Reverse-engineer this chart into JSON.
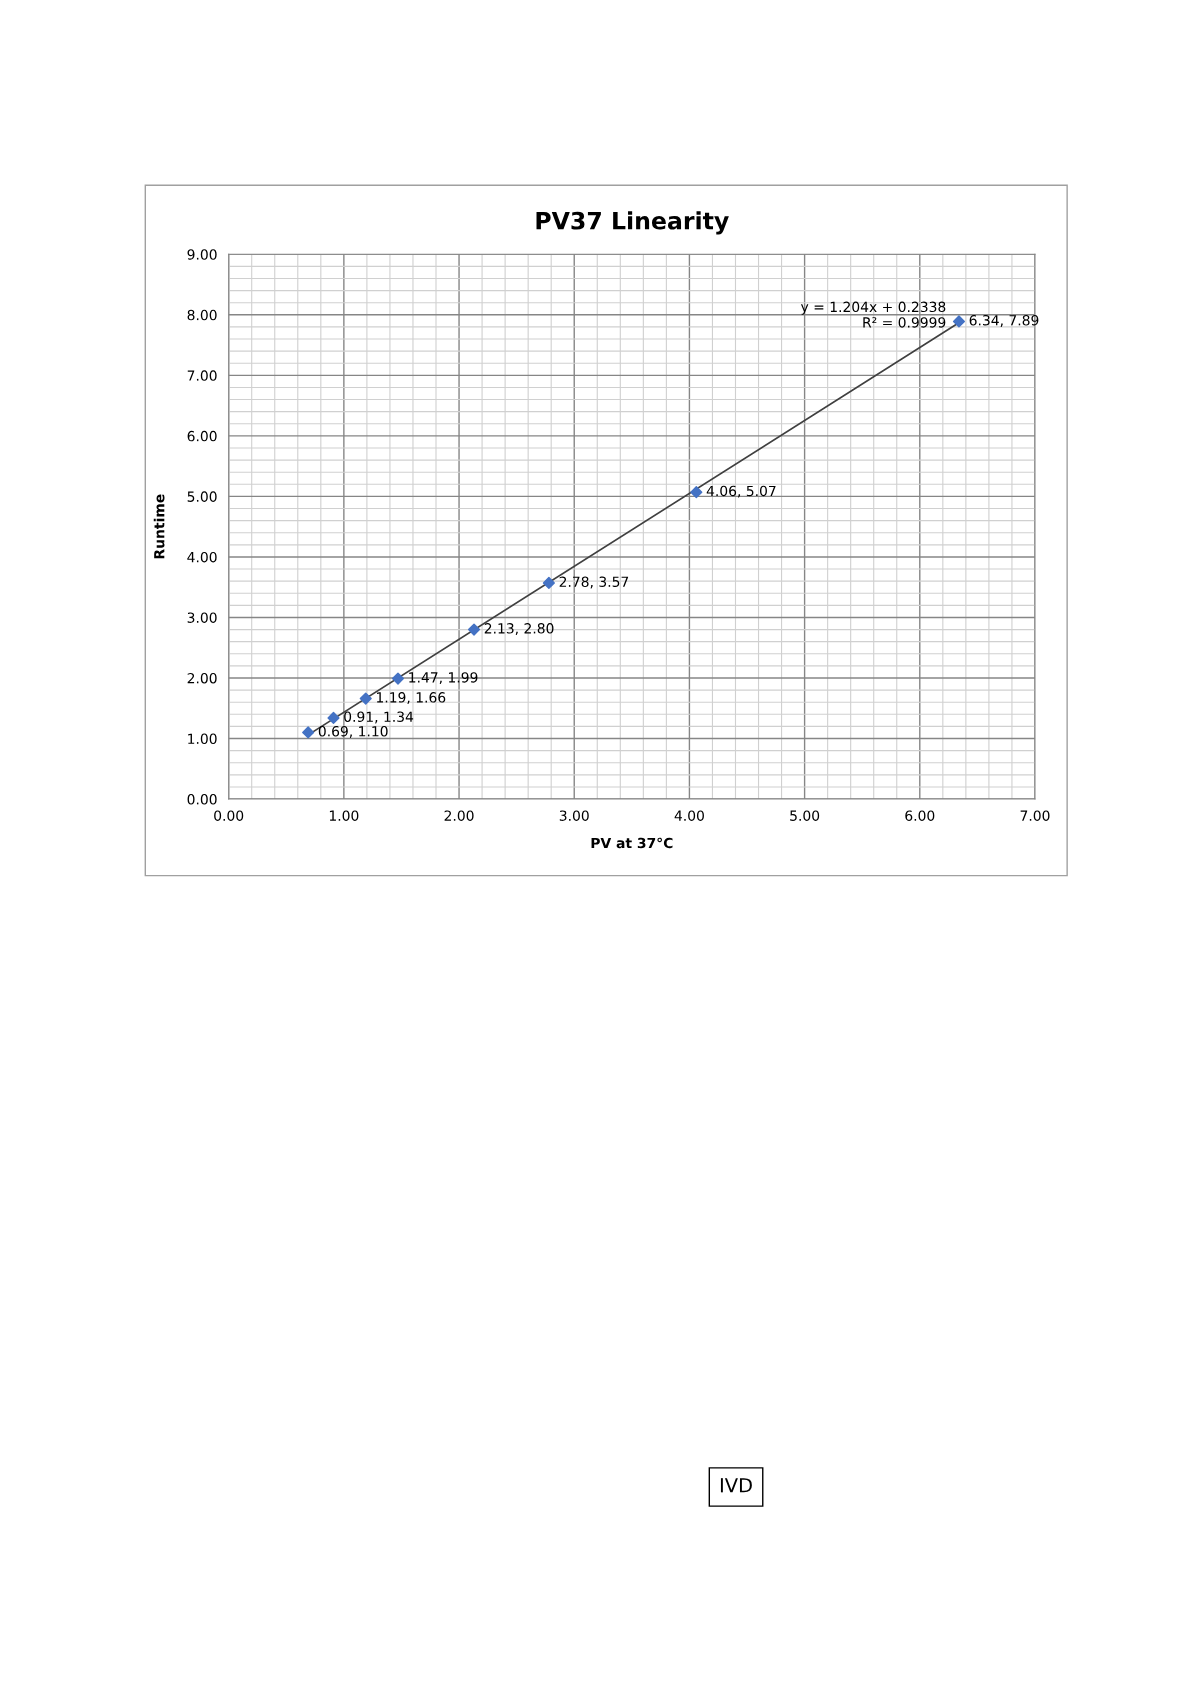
{
  "chart_data": {
    "type": "scatter",
    "title": "PV37 Linearity",
    "xlabel": "PV at 37°C",
    "ylabel": "Runtime",
    "series": [
      {
        "color": "#4472c4",
        "marker": "diamond",
        "x": [
          0.69,
          0.91,
          1.19,
          1.47,
          2.13,
          2.78,
          4.06,
          6.34
        ],
        "values": [
          1.1,
          1.34,
          1.66,
          1.99,
          2.8,
          3.57,
          5.07,
          7.89
        ],
        "value_labels": [
          "0.69, 1.10",
          "0.91, 1.34",
          "1.19, 1.66",
          "1.47, 1.99",
          "2.13, 2.80",
          "2.78, 3.57",
          "4.06, 5.07",
          "6.34, 7.89"
        ]
      },
      {
        "type": "line",
        "color": "#404040",
        "x": [
          0.69,
          6.34
        ],
        "values": [
          1.06,
          7.87
        ]
      }
    ],
    "annotations": [
      "y = 1.204x + 0.2338\nR² = 0.9999",
      "IVD"
    ],
    "xlim": [
      0,
      7
    ],
    "xticks": [
      {
        "value": 0,
        "label": "0.00"
      },
      {
        "value": 1,
        "label": "1.00"
      },
      {
        "value": 2,
        "label": "2.00"
      },
      {
        "value": 3,
        "label": "3.00"
      },
      {
        "value": 4,
        "label": "4.00"
      },
      {
        "value": 5,
        "label": "5.00"
      },
      {
        "value": 6,
        "label": "6.00"
      },
      {
        "value": 7,
        "label": "7.00"
      }
    ],
    "ylim": [
      0,
      9
    ],
    "yticks": [
      {
        "value": 0,
        "label": "0.00"
      },
      {
        "value": 1,
        "label": "1.00"
      },
      {
        "value": 2,
        "label": "2.00"
      },
      {
        "value": 3,
        "label": "3.00"
      },
      {
        "value": 4,
        "label": "4.00"
      },
      {
        "value": 5,
        "label": "5.00"
      },
      {
        "value": 6,
        "label": "6.00"
      },
      {
        "value": 7,
        "label": "7.00"
      },
      {
        "value": 8,
        "label": "8.00"
      },
      {
        "value": 9,
        "label": "9.00"
      }
    ],
    "grid": true
  }
}
